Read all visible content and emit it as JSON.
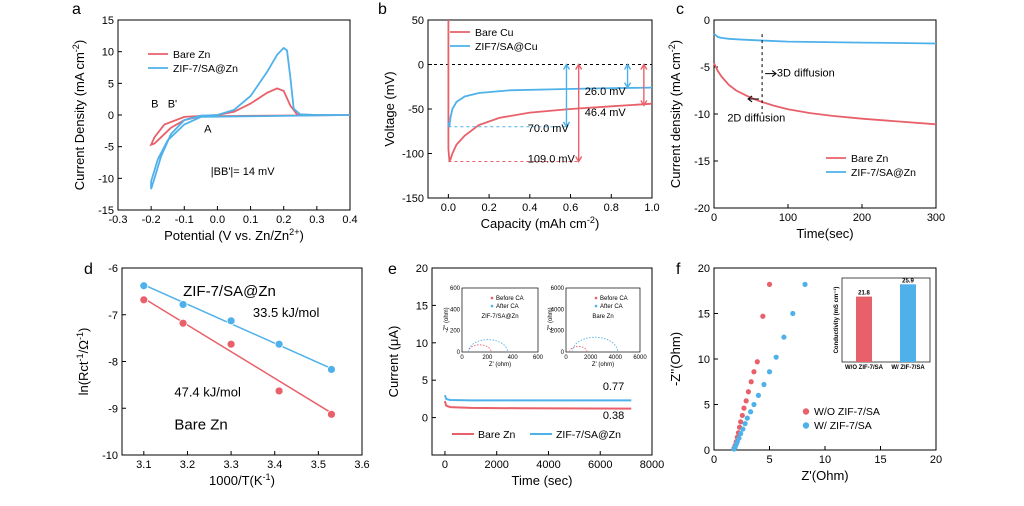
{
  "colors": {
    "red": "#e8606a",
    "blue": "#4fb1ea",
    "dash": "#000000"
  },
  "chart_data": [
    {
      "id": "a",
      "type": "line",
      "panel_label": "a",
      "xlabel": "Potential (V vs. Zn/Zn",
      "xlabel_sup": "2+",
      "xlabel_end": ")",
      "ylabel": "Current Density (mA cm",
      "ylabel_sup": "-2",
      "ylabel_end": ")",
      "xlim": [
        -0.3,
        0.4
      ],
      "ylim": [
        -15,
        15
      ],
      "xticks": [
        -0.3,
        -0.2,
        -0.1,
        0.0,
        0.1,
        0.2,
        0.3,
        0.4
      ],
      "xtick_labels": [
        "-0.3",
        "-0.2",
        "-0.1",
        "0.0",
        "0.1",
        "0.2",
        "0.3",
        "0.4"
      ],
      "yticks": [
        -15,
        -10,
        -5,
        0,
        5,
        10,
        15
      ],
      "legend": [
        "Bare Zn",
        "ZIF-7/SA@Zn"
      ],
      "annotations": [
        {
          "text": "B",
          "x": -0.2,
          "y": 1.2
        },
        {
          "text": "B'",
          "x": -0.15,
          "y": 1.2
        },
        {
          "text": "A",
          "x": -0.04,
          "y": -2.8
        },
        {
          "text": "|BB'|=  14 mV",
          "x": -0.02,
          "y": -9.5
        }
      ],
      "series": [
        {
          "name": "Bare Zn",
          "color": "red",
          "closed": true,
          "x": [
            -0.05,
            -0.1,
            -0.14,
            -0.17,
            -0.19,
            -0.2,
            -0.19,
            -0.16,
            -0.1,
            0.0,
            0.05,
            0.1,
            0.15,
            0.18,
            0.2,
            0.22,
            0.24,
            0.3,
            0.4
          ],
          "y": [
            -0.2,
            -0.8,
            -2.0,
            -3.5,
            -4.5,
            -4.7,
            -3.5,
            -1.5,
            -0.3,
            0.0,
            0.5,
            1.8,
            3.5,
            4.2,
            3.8,
            1.5,
            0.1,
            0.0,
            0.0
          ]
        },
        {
          "name": "ZIF-7/SA@Zn",
          "color": "blue",
          "closed": true,
          "x": [
            -0.05,
            -0.1,
            -0.15,
            -0.18,
            -0.2,
            -0.2,
            -0.19,
            -0.17,
            -0.14,
            -0.1,
            -0.05,
            0.0,
            0.05,
            0.1,
            0.15,
            0.18,
            0.2,
            0.21,
            0.22,
            0.23,
            0.25,
            0.3,
            0.4
          ],
          "y": [
            -0.3,
            -1.5,
            -4.0,
            -7.0,
            -10.5,
            -11.7,
            -10.0,
            -6.5,
            -3.0,
            -0.8,
            -0.1,
            0.0,
            0.8,
            3.0,
            6.8,
            9.5,
            10.6,
            10.2,
            6.0,
            1.0,
            0.1,
            0.0,
            0.0
          ]
        }
      ]
    },
    {
      "id": "b",
      "type": "line",
      "panel_label": "b",
      "xlabel": "Capacity (mAh cm",
      "xlabel_sup": "-2",
      "xlabel_end": ")",
      "ylabel": "Voltage (mV)",
      "xlim": [
        -0.1,
        1.0
      ],
      "ylim": [
        -150,
        50
      ],
      "xticks": [
        0.0,
        0.2,
        0.4,
        0.6,
        0.8,
        1.0
      ],
      "xtick_labels": [
        "0.0",
        "0.2",
        "0.4",
        "0.6",
        "0.8",
        "1.0"
      ],
      "yticks": [
        -150,
        -100,
        -50,
        0,
        50
      ],
      "legend": [
        "Bare Cu",
        "ZIF7/SA@Cu"
      ],
      "annotations": [
        {
          "text": "26.0 mV",
          "x": 0.67,
          "y": -34,
          "color": "blue"
        },
        {
          "text": "46.4 mV",
          "x": 0.67,
          "y": -58,
          "color": "red"
        },
        {
          "text": "70.0 mV",
          "x": 0.39,
          "y": -76,
          "color": "blue"
        },
        {
          "text": "109.0 mV",
          "x": 0.39,
          "y": -110,
          "color": "red"
        }
      ],
      "series": [
        {
          "name": "Bare Cu",
          "color": "red",
          "x": [
            0.0,
            0.0,
            0.005,
            0.01,
            0.02,
            0.04,
            0.08,
            0.15,
            0.25,
            0.4,
            0.6,
            0.8,
            1.0
          ],
          "y": [
            50,
            -95,
            -108,
            -107,
            -100,
            -90,
            -80,
            -68,
            -60,
            -54,
            -50,
            -47,
            -44
          ]
        },
        {
          "name": "ZIF7/SA@Cu",
          "color": "blue",
          "x": [
            0.0,
            0.005,
            0.01,
            0.02,
            0.04,
            0.08,
            0.15,
            0.3,
            0.5,
            0.7,
            1.0
          ],
          "y": [
            -65,
            -70,
            -60,
            -50,
            -42,
            -36,
            -32,
            -29,
            -28,
            -27,
            -26
          ]
        }
      ]
    },
    {
      "id": "c",
      "type": "line",
      "panel_label": "c",
      "xlabel": "Time(sec)",
      "ylabel": "Current density (mA cm",
      "ylabel_sup": "-2",
      "ylabel_end": ")",
      "xlim": [
        0,
        300
      ],
      "ylim": [
        -20,
        0
      ],
      "xticks": [
        0,
        100,
        200,
        300
      ],
      "xtick_labels": [
        "0",
        "100",
        "200",
        "300"
      ],
      "yticks": [
        -20,
        -15,
        -10,
        -5,
        0
      ],
      "legend": [
        "Bare Zn",
        "ZIF-7/SA@Zn"
      ],
      "annotations": [
        {
          "text": "3D diffusion",
          "x": 85,
          "y": -6.0
        },
        {
          "text": "2D diffusion",
          "x": 18,
          "y": -10.8
        }
      ],
      "series": [
        {
          "name": "Bare Zn",
          "color": "red",
          "x": [
            0,
            2,
            5,
            10,
            20,
            30,
            45,
            60,
            80,
            100,
            130,
            160,
            200,
            250,
            300
          ],
          "y": [
            -4.6,
            -4.9,
            -5.4,
            -6.0,
            -6.9,
            -7.5,
            -8.1,
            -8.6,
            -9.1,
            -9.5,
            -9.9,
            -10.2,
            -10.5,
            -10.8,
            -11.1
          ]
        },
        {
          "name": "ZIF-7/SA@Zn",
          "color": "blue",
          "x": [
            0,
            2,
            5,
            10,
            20,
            40,
            70,
            100,
            150,
            200,
            250,
            300
          ],
          "y": [
            -1.5,
            -1.6,
            -1.8,
            -1.9,
            -2.0,
            -2.1,
            -2.2,
            -2.3,
            -2.35,
            -2.4,
            -2.45,
            -2.5
          ]
        }
      ]
    },
    {
      "id": "d",
      "type": "scatter",
      "panel_label": "d",
      "xlabel": "1000/T(K",
      "xlabel_sup": "-1",
      "xlabel_end": ")",
      "ylabel": "ln(Rct",
      "ylabel_sup": "-1",
      "ylabel_end": "/Ω",
      "ylabel_sup2": "-1",
      "ylabel_end2": ")",
      "xlim": [
        3.05,
        3.6
      ],
      "ylim": [
        -10,
        -6
      ],
      "xticks": [
        3.1,
        3.2,
        3.3,
        3.4,
        3.5,
        3.6
      ],
      "xtick_labels": [
        "3.1",
        "3.2",
        "3.3",
        "3.4",
        "3.5",
        "3.6"
      ],
      "yticks": [
        -10,
        -9,
        -8,
        -7,
        -6
      ],
      "annotations": [
        {
          "text": "ZIF-7/SA@Zn",
          "x": 3.19,
          "y": -6.6,
          "size": 15
        },
        {
          "text": "33.5 kJ/mol",
          "x": 3.35,
          "y": -7.05,
          "size": 13
        },
        {
          "text": "47.4 kJ/mol",
          "x": 3.17,
          "y": -8.75,
          "size": 13
        },
        {
          "text": "Bare Zn",
          "x": 3.17,
          "y": -9.45,
          "size": 15
        }
      ],
      "series": [
        {
          "name": "ZIF-7/SA@Zn",
          "color": "blue",
          "x": [
            3.1,
            3.19,
            3.3,
            3.41,
            3.53
          ],
          "y": [
            -6.38,
            -6.78,
            -7.13,
            -7.63,
            -8.17
          ],
          "fit": [
            [
              3.1,
              -6.36
            ],
            [
              3.53,
              -8.15
            ]
          ]
        },
        {
          "name": "Bare Zn",
          "color": "red",
          "x": [
            3.1,
            3.19,
            3.3,
            3.41,
            3.53
          ],
          "y": [
            -6.68,
            -7.18,
            -7.63,
            -8.63,
            -9.13
          ],
          "fit": [
            [
              3.1,
              -6.65
            ],
            [
              3.53,
              -9.1
            ]
          ]
        }
      ]
    },
    {
      "id": "e",
      "type": "line",
      "panel_label": "e",
      "xlabel": "Time (sec)",
      "ylabel": "Current (μA)",
      "xlim": [
        -500,
        8000
      ],
      "ylim": [
        -5,
        20
      ],
      "xticks": [
        0,
        2000,
        4000,
        6000,
        8000
      ],
      "xtick_labels": [
        "0",
        "2000",
        "4000",
        "6000",
        "8000"
      ],
      "yticks": [
        0,
        5,
        10,
        15,
        20
      ],
      "legend": [
        "Bare Zn",
        "ZIF-7/SA@Zn"
      ],
      "annotations": [
        {
          "text": "0.77",
          "x": 6100,
          "y": 3.7,
          "color": "blue"
        },
        {
          "text": "0.38",
          "x": 6100,
          "y": -0.2,
          "color": "red"
        }
      ],
      "series": [
        {
          "name": "Bare Zn",
          "color": "red",
          "x": [
            0,
            50,
            200,
            1000,
            3000,
            7200
          ],
          "y": [
            2.2,
            1.6,
            1.4,
            1.3,
            1.25,
            1.2
          ]
        },
        {
          "name": "ZIF-7/SA@Zn",
          "color": "blue",
          "x": [
            0,
            50,
            200,
            1000,
            3000,
            7200
          ],
          "y": [
            3.0,
            2.5,
            2.35,
            2.3,
            2.3,
            2.3
          ]
        }
      ],
      "insets": [
        {
          "title": "ZIF-7/SA@Zn",
          "ylabel": "-Z'' (ohm)",
          "xlabel": "Z' (ohm)",
          "xlim": [
            0,
            600
          ],
          "ylim": [
            0,
            600
          ],
          "xticks": [
            0,
            200,
            400,
            600
          ],
          "yticks": [
            0,
            200,
            400,
            600
          ],
          "legend": [
            "Before CA",
            "After CA"
          ],
          "before_arc": [
            50,
            230
          ],
          "after_arc": [
            50,
            360
          ]
        },
        {
          "title": "Bare Zn",
          "ylabel": "-Z'' (ohm)",
          "xlabel": "Z' (ohm)",
          "xlim": [
            0,
            6000
          ],
          "ylim": [
            0,
            6000
          ],
          "xticks": [
            0,
            2000,
            4000,
            6000
          ],
          "yticks": [
            0,
            2000,
            4000,
            6000
          ],
          "legend": [
            "Before CA",
            "After CA"
          ],
          "before_arc": [
            300,
            1700
          ],
          "after_arc": [
            500,
            4200
          ]
        }
      ]
    },
    {
      "id": "f",
      "type": "scatter",
      "panel_label": "f",
      "xlabel": "Z'(Ohm)",
      "ylabel": "-Z''(Ohm)",
      "xlim": [
        0,
        20
      ],
      "ylim": [
        0,
        20
      ],
      "xticks": [
        0,
        5,
        10,
        15,
        20
      ],
      "yticks": [
        0,
        5,
        10,
        15,
        20
      ],
      "legend": [
        "W/O ZIF-7/SA",
        "W/ ZIF-7/SA"
      ],
      "series": [
        {
          "name": "W/O ZIF-7/SA",
          "color": "red",
          "x": [
            1.8,
            1.9,
            2.0,
            2.1,
            2.2,
            2.3,
            2.4,
            2.55,
            2.7,
            2.9,
            3.1,
            3.35,
            3.6,
            3.9,
            4.4,
            5.0
          ],
          "y": [
            0.2,
            0.5,
            0.9,
            1.4,
            1.9,
            2.5,
            3.1,
            3.8,
            4.6,
            5.4,
            6.4,
            7.5,
            8.6,
            9.7,
            14.7,
            18.2
          ]
        },
        {
          "name": "W/ ZIF-7/SA",
          "color": "blue",
          "x": [
            1.8,
            1.9,
            2.0,
            2.1,
            2.25,
            2.4,
            2.6,
            2.8,
            3.0,
            3.3,
            3.6,
            4.0,
            4.5,
            5.0,
            5.6,
            6.3,
            7.1,
            8.2
          ],
          "y": [
            0.1,
            0.3,
            0.6,
            0.9,
            1.3,
            1.8,
            2.3,
            2.9,
            3.5,
            4.2,
            5.0,
            6.0,
            7.2,
            8.6,
            10.2,
            12.4,
            15.0,
            18.2
          ]
        }
      ],
      "inset": {
        "type": "bar",
        "ylabel": "Conductivity (mS cm⁻¹)",
        "categories": [
          "W/O ZIF-7/SA",
          "W/ ZIF-7/SA"
        ],
        "values": [
          21.8,
          25.9
        ],
        "value_labels": [
          "21.8",
          "25.9"
        ],
        "ylim": [
          0,
          28
        ]
      }
    }
  ]
}
